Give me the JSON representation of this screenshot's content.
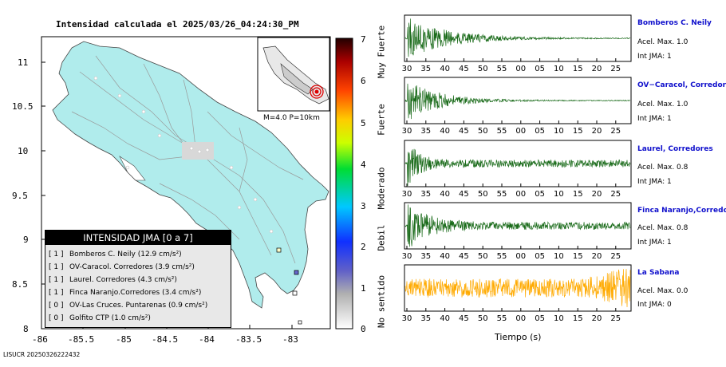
{
  "map": {
    "title": "Intensidad calculada el 2025/03/26_04:24:30_PM",
    "y_ticks": [
      "11",
      "10.5",
      "10",
      "9.5",
      "9",
      "8.5",
      "8"
    ],
    "x_ticks": [
      "-86",
      "-85.5",
      "-85",
      "-84.5",
      "-84",
      "-83.5",
      "-83"
    ],
    "inset_label": "M=4.0 P=10km",
    "land_color": "#b0ecec",
    "footer_id": "LISUCR 20250326222432"
  },
  "legend": {
    "header": "INTENSIDAD JMA [0 a 7]",
    "rows": [
      {
        "level": "[ 1 ]",
        "text": "Bomberos C. Neily (12.9 cm/s²)"
      },
      {
        "level": "[ 1 ]",
        "text": "OV-Caracol. Corredores (3.9 cm/s²)"
      },
      {
        "level": "[ 1 ]",
        "text": "Laurel. Corredores (4.3 cm/s²)"
      },
      {
        "level": "[ 1 ]",
        "text": "Finca Naranjo.Corredores (3.4 cm/s²)"
      },
      {
        "level": "[ 0 ]",
        "text": "OV-Las Cruces. Puntarenas (0.9 cm/s²)"
      },
      {
        "level": "[ 0 ]",
        "text": "Golfito CTP (1.0 cm/s²)"
      }
    ]
  },
  "colorbar": {
    "ticks": [
      "7",
      "6",
      "5",
      "4",
      "3",
      "2",
      "1",
      "0"
    ],
    "labels": [
      "Muy Fuerte",
      "Fuerte",
      "Moderado",
      "Debil",
      "No sentido"
    ]
  },
  "waveforms": {
    "x_ticks": [
      "30",
      "35",
      "40",
      "45",
      "50",
      "55",
      "00",
      "05",
      "10",
      "15",
      "20",
      "25"
    ],
    "x_axis_label": "Tiempo (s)",
    "stations": [
      {
        "name": "Bomberos C. Neily",
        "accel": "Acel. Max. 1.0",
        "jma": "Int JMA: 1",
        "color": "#1a6b1a",
        "decay": 0.18
      },
      {
        "name": "OV−Caracol, Corredores",
        "accel": "Acel. Max. 1.0",
        "jma": "Int JMA: 1",
        "color": "#1a6b1a",
        "decay": 0.14
      },
      {
        "name": "Laurel, Corredores",
        "accel": "Acel. Max. 0.8",
        "jma": "Int JMA: 1",
        "color": "#1a6b1a",
        "decay": 0.05
      },
      {
        "name": "Finca Naranjo,Corredores",
        "accel": "Acel. Max. 0.8",
        "jma": "Int JMA: 1",
        "color": "#1a6b1a",
        "decay": 0.09
      },
      {
        "name": "La Sabana",
        "accel": "Acel. Max. 0.0",
        "jma": "Int JMA: 0",
        "color": "#ffaa00",
        "decay": 0.0
      }
    ]
  }
}
